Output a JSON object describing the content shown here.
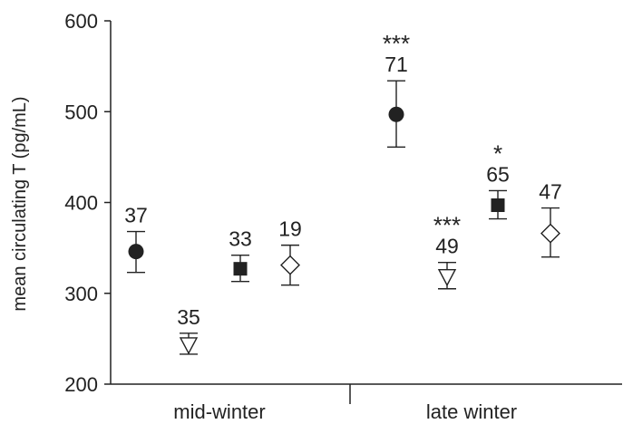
{
  "chart_data": {
    "type": "scatter",
    "title": "",
    "xlabel": "",
    "ylabel": "mean circulating T (pg/mL)",
    "ylim": [
      200,
      600
    ],
    "yticks": [
      200,
      300,
      400,
      500,
      600
    ],
    "grid": false,
    "categories": [
      "mid-winter",
      "late winter"
    ],
    "points": [
      {
        "category": "mid-winter",
        "marker": "circle-filled",
        "mean": 346,
        "lower": 323,
        "upper": 368,
        "n": "37",
        "sig": ""
      },
      {
        "category": "mid-winter",
        "marker": "triangle-open",
        "mean": 243,
        "lower": 233,
        "upper": 256,
        "n": "35",
        "sig": ""
      },
      {
        "category": "mid-winter",
        "marker": "square-filled",
        "mean": 327,
        "lower": 313,
        "upper": 342,
        "n": "33",
        "sig": ""
      },
      {
        "category": "mid-winter",
        "marker": "diamond-open",
        "mean": 331,
        "lower": 309,
        "upper": 353,
        "n": "19",
        "sig": ""
      },
      {
        "category": "late winter",
        "marker": "circle-filled",
        "mean": 497,
        "lower": 461,
        "upper": 534,
        "n": "71",
        "sig": "***"
      },
      {
        "category": "late winter",
        "marker": "triangle-open",
        "mean": 318,
        "lower": 305,
        "upper": 334,
        "n": "49",
        "sig": "***"
      },
      {
        "category": "late winter",
        "marker": "square-filled",
        "mean": 397,
        "lower": 382,
        "upper": 413,
        "n": "65",
        "sig": "*"
      },
      {
        "category": "late winter",
        "marker": "diamond-open",
        "mean": 366,
        "lower": 340,
        "upper": 394,
        "n": "47",
        "sig": ""
      }
    ]
  }
}
